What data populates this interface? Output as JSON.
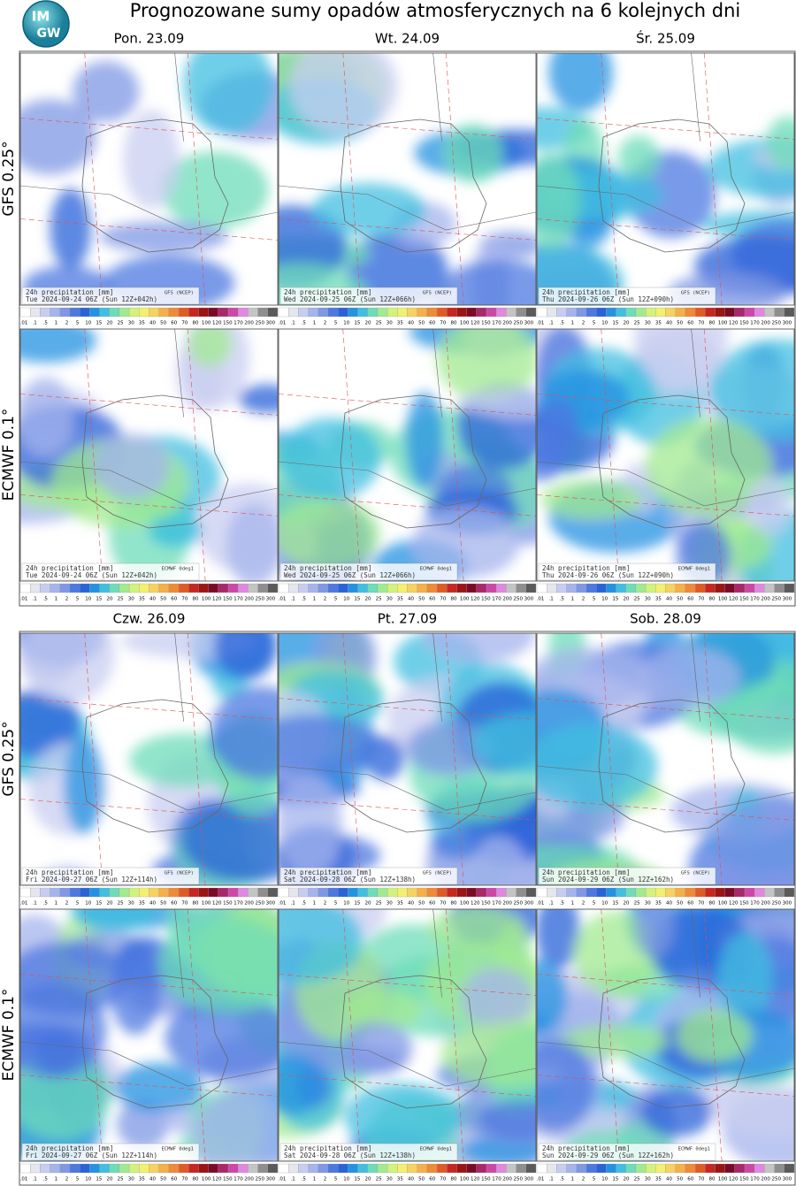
{
  "header": {
    "title": "Prognozowane sumy opadów atmosferycznych na 6 kolejnych dni",
    "logo": [
      "IM",
      "GW"
    ]
  },
  "row_labels": [
    "GFS 0.25°",
    "ECMWF 0.1°"
  ],
  "panel_caption": "24h precipitation  [mm]",
  "models": [
    "GFS (NCEP)",
    "ECMWF 0deg1"
  ],
  "colorbar": {
    "labels": [
      ".01",
      ".1",
      ".5",
      "1",
      "2",
      "5",
      "10",
      "15",
      "20",
      "25",
      "30",
      "35",
      "40",
      "50",
      "60",
      "70",
      "80",
      "100",
      "120",
      "150",
      "170",
      "200",
      "250",
      "300"
    ],
    "colors": [
      "#ffffff",
      "#e6e6ee",
      "#c8cdf0",
      "#a5b4ec",
      "#7f97e4",
      "#4d78e0",
      "#2a62d8",
      "#2492e2",
      "#40bfe0",
      "#6edcb8",
      "#a2ea92",
      "#d2f27c",
      "#f2f070",
      "#f6d262",
      "#f4b04a",
      "#ee8a38",
      "#e05a26",
      "#c82620",
      "#9c1414",
      "#7a0a28",
      "#a8286a",
      "#cc48a8",
      "#e088e0",
      "#c4c4c4",
      "#8e8e8e",
      "#5a5a5a"
    ]
  },
  "blocks": [
    {
      "days": [
        {
          "label": "Pon. 23.09",
          "valid": "Tue 2024-09-24 06Z (Sun 12Z+042h)"
        },
        {
          "label": "Wt. 24.09",
          "valid": "Wed 2024-09-25 06Z (Sun 12Z+066h)"
        },
        {
          "label": "Śr. 25.09",
          "valid": "Thu 2024-09-26 06Z (Sun 12Z+090h)"
        }
      ]
    },
    {
      "days": [
        {
          "label": "Czw. 26.09",
          "valid": "Fri 2024-09-27 06Z (Sun 12Z+114h)"
        },
        {
          "label": "Pt. 27.09",
          "valid": "Sat 2024-09-28 06Z (Sun 12Z+138h)"
        },
        {
          "label": "Sob. 28.09",
          "valid": "Sun 2024-09-29 06Z (Sun 12Z+162h)"
        }
      ]
    }
  ]
}
